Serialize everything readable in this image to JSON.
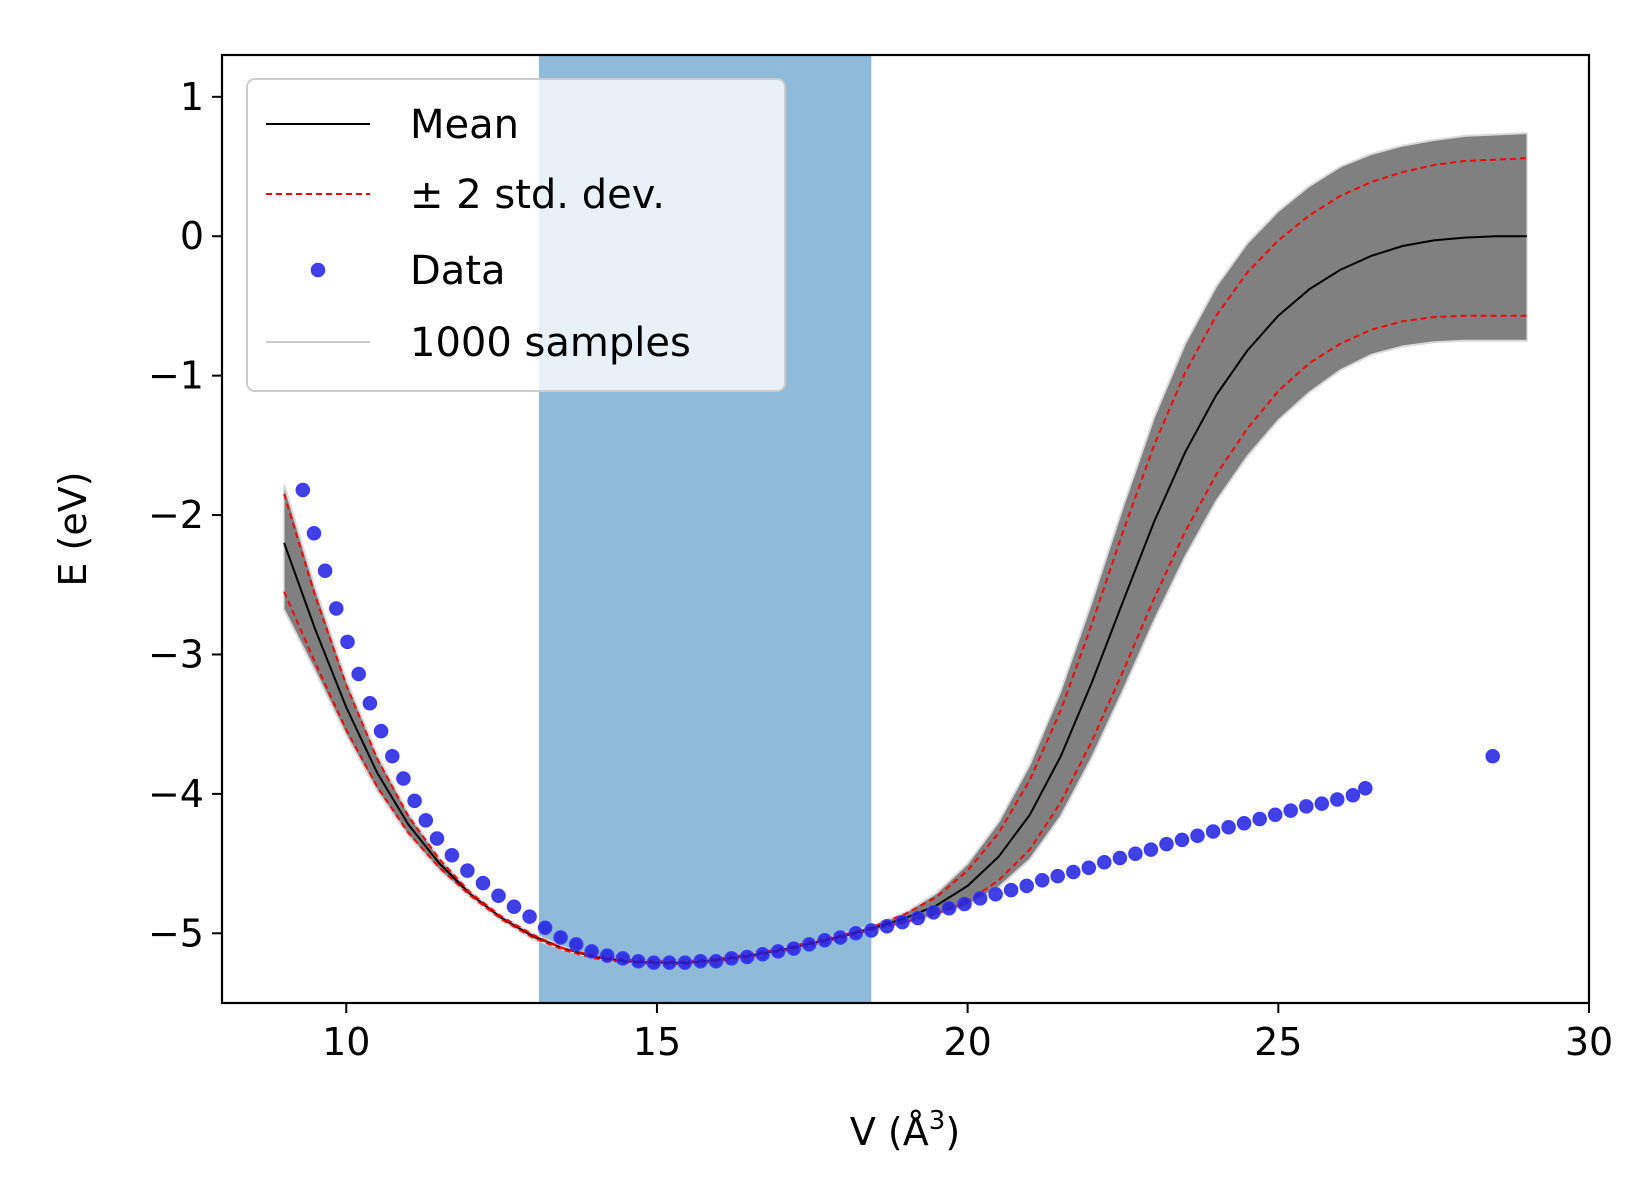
{
  "chart_data": {
    "type": "line",
    "xlabel": "V (Å",
    "xlabel_sup": "3",
    "xlabel_close": ")",
    "ylabel": "E (eV)",
    "xlim": [
      8,
      30
    ],
    "ylim": [
      -5.5,
      1.3
    ],
    "x_ticks": [
      10,
      15,
      20,
      25,
      30
    ],
    "y_ticks": [
      1,
      0,
      -1,
      -2,
      -3,
      -4,
      -5
    ],
    "x_tick_labels": [
      "10",
      "15",
      "20",
      "25",
      "30"
    ],
    "y_tick_labels": [
      "1",
      "0",
      "−1",
      "−2",
      "−3",
      "−4",
      "−5"
    ],
    "highlight_region": {
      "x_range": [
        13.1,
        18.45
      ],
      "color": "#8fbbd9"
    },
    "legend": {
      "location": "upper left",
      "entries": [
        {
          "label": "Mean",
          "kind": "line",
          "color": "#000000"
        },
        {
          "label": "± 2 std. dev.",
          "kind": "dashed",
          "color": "#ff0000"
        },
        {
          "label": "Data",
          "kind": "marker",
          "color": "#1f1fe0"
        },
        {
          "label": "1000 samples",
          "kind": "line",
          "color": "#cccccc"
        }
      ]
    },
    "series": [
      {
        "name": "Mean",
        "color": "#000000",
        "x": [
          9.0,
          9.5,
          10.0,
          10.5,
          11.0,
          11.5,
          12.0,
          12.5,
          13.0,
          13.5,
          14.0,
          14.5,
          15.0,
          15.5,
          16.0,
          16.5,
          17.0,
          17.5,
          18.0,
          18.5,
          19.0,
          19.5,
          20.0,
          20.5,
          21.0,
          21.5,
          22.0,
          22.5,
          23.0,
          23.5,
          24.0,
          24.5,
          25.0,
          25.5,
          26.0,
          26.5,
          27.0,
          27.5,
          28.0,
          28.5,
          29.0
        ],
        "y": [
          -2.2,
          -2.82,
          -3.38,
          -3.85,
          -4.22,
          -4.5,
          -4.72,
          -4.89,
          -5.02,
          -5.11,
          -5.17,
          -5.2,
          -5.21,
          -5.21,
          -5.19,
          -5.16,
          -5.12,
          -5.07,
          -5.02,
          -4.96,
          -4.89,
          -4.8,
          -4.66,
          -4.45,
          -4.15,
          -3.73,
          -3.2,
          -2.62,
          -2.05,
          -1.55,
          -1.14,
          -0.82,
          -0.57,
          -0.38,
          -0.24,
          -0.14,
          -0.07,
          -0.03,
          -0.01,
          0.0,
          0.0
        ]
      },
      {
        "name": "+2 std. dev.",
        "color": "#ff0000",
        "x": [
          9.0,
          9.5,
          10.0,
          10.5,
          11.0,
          11.5,
          12.0,
          12.5,
          13.0,
          13.5,
          14.0,
          14.5,
          15.0,
          15.5,
          16.0,
          16.5,
          17.0,
          17.5,
          18.0,
          18.5,
          19.0,
          19.5,
          20.0,
          20.5,
          21.0,
          21.5,
          22.0,
          22.5,
          23.0,
          23.5,
          24.0,
          24.5,
          25.0,
          25.5,
          26.0,
          26.5,
          27.0,
          27.5,
          28.0,
          28.5,
          29.0
        ],
        "y": [
          -1.85,
          -2.58,
          -3.22,
          -3.75,
          -4.16,
          -4.47,
          -4.71,
          -4.88,
          -5.01,
          -5.11,
          -5.16,
          -5.19,
          -5.2,
          -5.2,
          -5.18,
          -5.15,
          -5.11,
          -5.06,
          -5.01,
          -4.95,
          -4.86,
          -4.74,
          -4.55,
          -4.28,
          -3.9,
          -3.4,
          -2.78,
          -2.12,
          -1.5,
          -0.98,
          -0.57,
          -0.26,
          -0.03,
          0.15,
          0.29,
          0.39,
          0.46,
          0.51,
          0.54,
          0.55,
          0.56
        ]
      },
      {
        "name": "-2 std. dev.",
        "color": "#ff0000",
        "x": [
          9.0,
          9.5,
          10.0,
          10.5,
          11.0,
          11.5,
          12.0,
          12.5,
          13.0,
          13.5,
          14.0,
          14.5,
          15.0,
          15.5,
          16.0,
          16.5,
          17.0,
          17.5,
          18.0,
          18.5,
          19.0,
          19.5,
          20.0,
          20.5,
          21.0,
          21.5,
          22.0,
          22.5,
          23.0,
          23.5,
          24.0,
          24.5,
          25.0,
          25.5,
          26.0,
          26.5,
          27.0,
          27.5,
          28.0,
          28.5,
          29.0
        ],
        "y": [
          -2.55,
          -3.06,
          -3.54,
          -3.95,
          -4.28,
          -4.53,
          -4.73,
          -4.9,
          -5.03,
          -5.12,
          -5.18,
          -5.21,
          -5.22,
          -5.22,
          -5.2,
          -5.17,
          -5.13,
          -5.08,
          -5.03,
          -4.97,
          -4.92,
          -4.86,
          -4.77,
          -4.62,
          -4.4,
          -4.06,
          -3.62,
          -3.12,
          -2.6,
          -2.12,
          -1.71,
          -1.38,
          -1.11,
          -0.91,
          -0.77,
          -0.67,
          -0.61,
          -0.58,
          -0.57,
          -0.57,
          -0.57
        ]
      }
    ],
    "band": {
      "name": "1000 samples",
      "color": "#808080",
      "x": [
        9.0,
        9.5,
        10.0,
        10.5,
        11.0,
        11.5,
        12.0,
        12.5,
        13.0,
        13.5,
        14.0,
        14.5,
        15.0,
        15.5,
        16.0,
        16.5,
        17.0,
        17.5,
        18.0,
        18.5,
        19.0,
        19.5,
        20.0,
        20.5,
        21.0,
        21.5,
        22.0,
        22.5,
        23.0,
        23.5,
        24.0,
        24.5,
        25.0,
        25.5,
        26.0,
        26.5,
        27.0,
        27.5,
        28.0,
        28.5,
        29.0
      ],
      "upper": [
        -1.78,
        -2.52,
        -3.18,
        -3.72,
        -4.14,
        -4.46,
        -4.7,
        -4.88,
        -5.0,
        -5.1,
        -5.16,
        -5.19,
        -5.2,
        -5.2,
        -5.18,
        -5.15,
        -5.11,
        -5.06,
        -5.0,
        -4.94,
        -4.85,
        -4.71,
        -4.5,
        -4.2,
        -3.79,
        -3.26,
        -2.62,
        -1.94,
        -1.3,
        -0.77,
        -0.36,
        -0.05,
        0.18,
        0.36,
        0.5,
        0.59,
        0.65,
        0.69,
        0.72,
        0.73,
        0.74
      ],
      "lower": [
        -2.68,
        -3.12,
        -3.58,
        -3.98,
        -4.3,
        -4.55,
        -4.74,
        -4.91,
        -5.04,
        -5.12,
        -5.18,
        -5.21,
        -5.22,
        -5.22,
        -5.2,
        -5.17,
        -5.13,
        -5.08,
        -5.03,
        -4.98,
        -4.93,
        -4.87,
        -4.8,
        -4.67,
        -4.47,
        -4.16,
        -3.74,
        -3.26,
        -2.76,
        -2.3,
        -1.9,
        -1.58,
        -1.32,
        -1.12,
        -0.96,
        -0.85,
        -0.79,
        -0.76,
        -0.75,
        -0.75,
        -0.75
      ]
    },
    "data_points": {
      "name": "Data",
      "color": "#1f1fe0",
      "x": [
        9.3,
        9.48,
        9.66,
        9.84,
        10.02,
        10.2,
        10.38,
        10.56,
        10.74,
        10.92,
        11.1,
        11.28,
        11.46,
        11.7,
        11.95,
        12.2,
        12.45,
        12.7,
        12.95,
        13.2,
        13.45,
        13.7,
        13.95,
        14.2,
        14.45,
        14.7,
        14.95,
        15.2,
        15.45,
        15.7,
        15.95,
        16.2,
        16.45,
        16.7,
        16.95,
        17.2,
        17.45,
        17.7,
        17.95,
        18.2,
        18.45,
        18.7,
        18.95,
        19.2,
        19.45,
        19.7,
        19.95,
        20.2,
        20.45,
        20.7,
        20.95,
        21.2,
        21.45,
        21.7,
        21.95,
        22.2,
        22.45,
        22.7,
        22.95,
        23.2,
        23.45,
        23.7,
        23.95,
        24.2,
        24.45,
        24.7,
        24.95,
        25.2,
        25.45,
        25.7,
        25.95,
        26.2,
        26.4,
        28.45
      ],
      "y": [
        -1.82,
        -2.13,
        -2.4,
        -2.67,
        -2.91,
        -3.14,
        -3.35,
        -3.55,
        -3.73,
        -3.89,
        -4.05,
        -4.19,
        -4.32,
        -4.44,
        -4.55,
        -4.64,
        -4.73,
        -4.81,
        -4.88,
        -4.96,
        -5.03,
        -5.08,
        -5.13,
        -5.16,
        -5.18,
        -5.2,
        -5.21,
        -5.21,
        -5.21,
        -5.2,
        -5.2,
        -5.18,
        -5.17,
        -5.15,
        -5.13,
        -5.11,
        -5.08,
        -5.05,
        -5.03,
        -5.0,
        -4.98,
        -4.95,
        -4.92,
        -4.89,
        -4.85,
        -4.82,
        -4.79,
        -4.75,
        -4.72,
        -4.69,
        -4.66,
        -4.62,
        -4.59,
        -4.56,
        -4.53,
        -4.49,
        -4.46,
        -4.43,
        -4.4,
        -4.36,
        -4.33,
        -4.3,
        -4.27,
        -4.24,
        -4.21,
        -4.18,
        -4.15,
        -4.12,
        -4.09,
        -4.07,
        -4.04,
        -4.01,
        -3.96,
        -3.73
      ]
    }
  }
}
